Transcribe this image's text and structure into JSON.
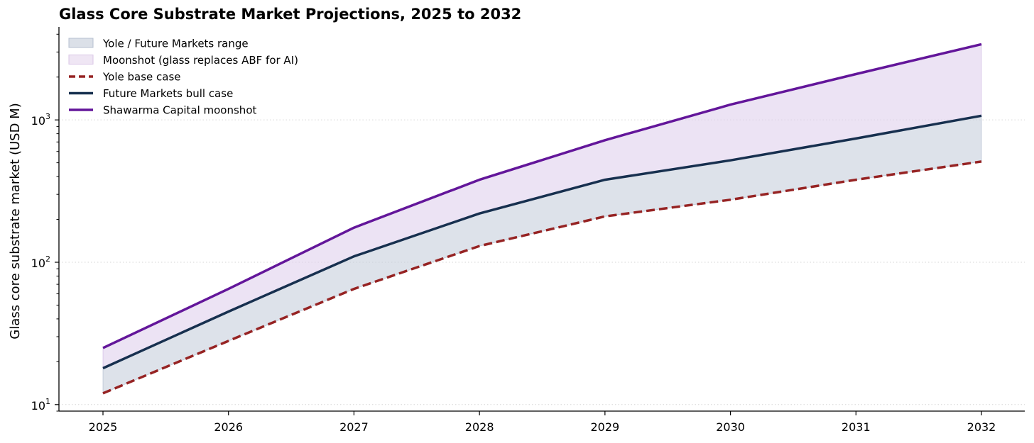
{
  "chart_data": {
    "type": "line",
    "title": "Glass Core Substrate Market Projections, 2025 to 2032",
    "xlabel": "",
    "ylabel": "Glass core substrate market (USD M)",
    "yscale": "log",
    "ylim": [
      9,
      4500
    ],
    "x": [
      2025,
      2026,
      2027,
      2028,
      2029,
      2030,
      2031,
      2032
    ],
    "x_tick_labels": [
      "2025",
      "2026",
      "2027",
      "2028",
      "2029",
      "2030",
      "2031",
      "2032"
    ],
    "y_ticks": [
      {
        "value": 10,
        "base": "10",
        "exp": "1"
      },
      {
        "value": 100,
        "base": "10",
        "exp": "2"
      },
      {
        "value": 1000,
        "base": "10",
        "exp": "3"
      }
    ],
    "grid": "horizontal dotted",
    "legend_position": "top-left",
    "series": [
      {
        "name": "Yole base case",
        "style": "dashed",
        "color": "#962323",
        "values": [
          12,
          28,
          65,
          130,
          210,
          275,
          380,
          510
        ]
      },
      {
        "name": "Future Markets bull case",
        "style": "solid",
        "color": "#17304f",
        "values": [
          18,
          45,
          110,
          220,
          380,
          520,
          740,
          1070
        ]
      },
      {
        "name": "Shawarma Capital moonshot",
        "style": "solid",
        "color": "#63169a",
        "values": [
          25,
          65,
          175,
          380,
          720,
          1280,
          2100,
          3400
        ]
      }
    ],
    "bands": [
      {
        "name": "Yole / Future Markets range",
        "lower": "Yole base case",
        "upper": "Future Markets bull case",
        "color": "#c7cfdc"
      },
      {
        "name": "Moonshot (glass replaces ABF for AI)",
        "lower": "Future Markets bull case",
        "upper": "Shawarma Capital moonshot",
        "color": "#e6d9ef"
      }
    ],
    "legend": [
      {
        "label": "Yole / Future Markets range",
        "kind": "patch",
        "fill": "#dbe0e8",
        "stroke": "#b7c1d1"
      },
      {
        "label": "Moonshot (glass replaces ABF for AI)",
        "kind": "patch",
        "fill": "#efe6f4",
        "stroke": "#d9c6e6"
      },
      {
        "label": "Yole base case",
        "kind": "dashed",
        "color": "#962323"
      },
      {
        "label": "Future Markets bull case",
        "kind": "line",
        "color": "#17304f"
      },
      {
        "label": "Shawarma Capital moonshot",
        "kind": "line",
        "color": "#63169a"
      }
    ]
  }
}
